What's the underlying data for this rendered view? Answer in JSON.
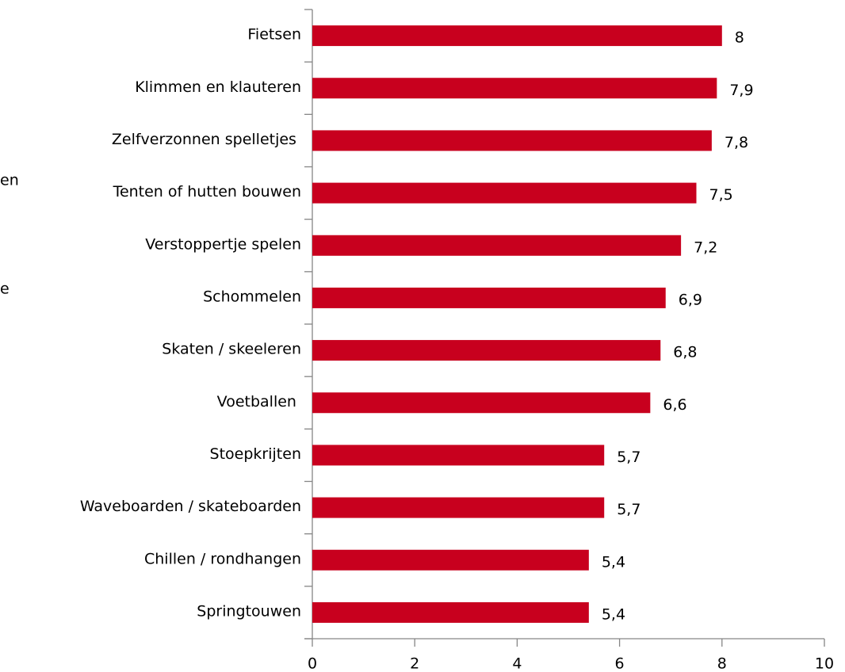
{
  "chart_data": {
    "type": "bar",
    "orientation": "horizontal",
    "categories": [
      "Fietsen",
      "Klimmen en klauteren",
      "Zelfverzonnen spelletjes ",
      "Tenten of hutten bouwen",
      "Verstoppertje spelen",
      "Schommelen",
      "Skaten / skeeleren",
      "Voetballen ",
      "Stoepkrijten",
      "Waveboarden / skateboarden",
      "Chillen / rondhangen",
      "Springtouwen"
    ],
    "values": [
      8,
      7.9,
      7.8,
      7.5,
      7.2,
      6.9,
      6.8,
      6.6,
      5.7,
      5.7,
      5.4,
      5.4
    ],
    "value_labels": [
      "8",
      "7,9",
      "7,8",
      "7,5",
      "7,2",
      "6,9",
      "6,8",
      "6,6",
      "5,7",
      "5,7",
      "5,4",
      "5,4"
    ],
    "color": "#c8001e",
    "xlim": [
      0,
      10
    ],
    "xticks": [
      0,
      2,
      4,
      6,
      8,
      10
    ],
    "annotations": [
      "en",
      "e"
    ]
  }
}
